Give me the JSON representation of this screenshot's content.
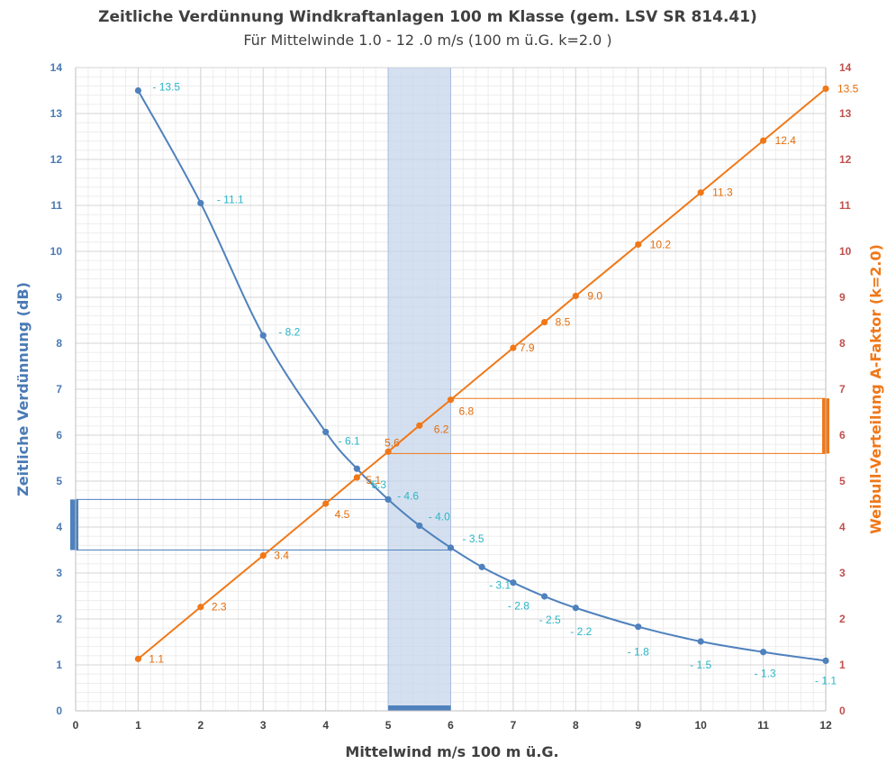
{
  "chart_data": {
    "type": "line",
    "title": "Zeitliche Verdünnung Windkraftanlagen 100 m Klasse (gem. LSV SR 814.41)",
    "subtitle": "Für Mittelwinde 1.0 - 12 .0  m/s  (100 m ü.G.  k=2.0 )",
    "xlabel": "Mittelwind m/s  100 m ü.G.",
    "ylabel_left": "Zeitliche Verdünnung (dB)",
    "ylabel_right": "Weibull-Verteilung A-Faktor (k=2.0)",
    "xlim": [
      0,
      12
    ],
    "ylim": [
      0,
      14
    ],
    "x_ticks": [
      "0",
      "1",
      "2",
      "3",
      "4",
      "5",
      "6",
      "7",
      "8",
      "9",
      "10",
      "11",
      "12"
    ],
    "y_ticks": [
      "0",
      "1",
      "2",
      "3",
      "4",
      "5",
      "6",
      "7",
      "8",
      "9",
      "10",
      "11",
      "12",
      "13",
      "14"
    ],
    "grid": true,
    "highlight_band_x": [
      5,
      6
    ],
    "highlight_left_range": [
      3.5,
      4.6
    ],
    "highlight_right_range": [
      5.6,
      6.8
    ],
    "colors": {
      "blue_line": "#4f81bd",
      "orange_line": "#f07818",
      "blue_labels": "#2bb5c8",
      "orange_labels": "#e46c0a",
      "band": "#c5d5ea",
      "left_axis": "#4a7ab5",
      "right_axis": "#c0504d"
    },
    "series": [
      {
        "axis": "left",
        "x": [
          1,
          2,
          3,
          4,
          4.5,
          5,
          5.5,
          6,
          6.5,
          7,
          7.5,
          8,
          9,
          10,
          11,
          12
        ],
        "values": [
          13.5,
          11.05,
          8.17,
          6.07,
          5.27,
          4.6,
          4.03,
          3.55,
          3.13,
          2.79,
          2.49,
          2.24,
          1.83,
          1.51,
          1.28,
          1.09
        ],
        "labels": [
          "- 13.5",
          "- 11.1",
          "- 8.2",
          "- 6.1",
          "5.3",
          "- 4.6",
          "- 4.0",
          "- 3.5",
          "- 3.1",
          "- 2.8",
          "- 2.5",
          "- 2.2",
          "- 1.8",
          "- 1.5",
          "- 1.3",
          "- 1.1"
        ]
      },
      {
        "axis": "right",
        "x": [
          1,
          2,
          3,
          4,
          4.5,
          5,
          5.5,
          6,
          7,
          7.5,
          8,
          9,
          10,
          11,
          12
        ],
        "values": [
          1.13,
          2.26,
          3.38,
          4.51,
          5.08,
          5.64,
          6.21,
          6.77,
          7.9,
          8.46,
          9.03,
          10.15,
          11.28,
          12.41,
          13.54
        ],
        "labels": [
          "1.1",
          "2.3",
          "3.4",
          "4.5",
          "5.1",
          "5.6",
          "6.2",
          "6.8",
          "7.9",
          "8.5",
          "9.0",
          "10.2",
          "11.3",
          "12.4",
          "13.5"
        ]
      }
    ]
  }
}
